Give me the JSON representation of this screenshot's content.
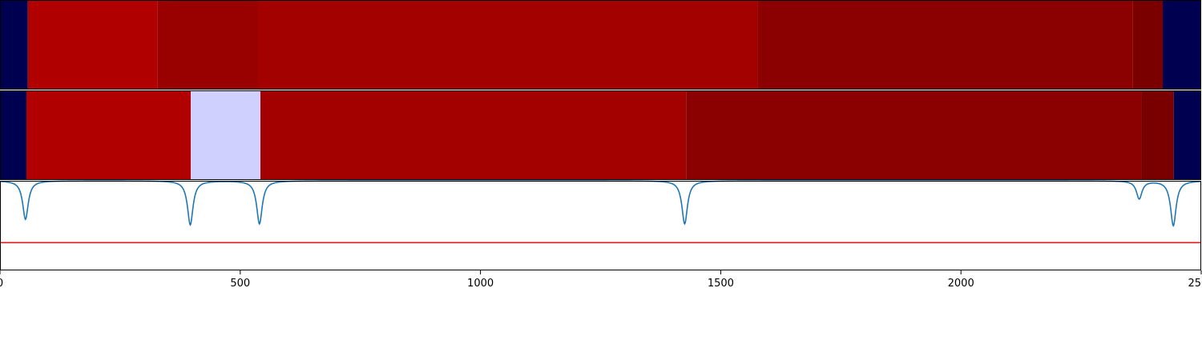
{
  "chart_data": {
    "type": "heatmap",
    "x_range": [
      0,
      2500
    ],
    "x_ticks": [
      0,
      500,
      1000,
      1500,
      2000,
      2500
    ],
    "x_tick_labels": [
      "0",
      "500",
      "1000",
      "1500",
      "2000",
      "2500"
    ],
    "grid": false,
    "rows": [
      {
        "segments": [
          {
            "start": 0,
            "end": 58,
            "color": "#000050"
          },
          {
            "start": 58,
            "end": 328,
            "color": "#b00000"
          },
          {
            "start": 328,
            "end": 537,
            "color": "#990000"
          },
          {
            "start": 537,
            "end": 1577,
            "color": "#a30000"
          },
          {
            "start": 1577,
            "end": 2358,
            "color": "#8b0000"
          },
          {
            "start": 2358,
            "end": 2420,
            "color": "#7a0000"
          },
          {
            "start": 2420,
            "end": 2500,
            "color": "#000050"
          }
        ]
      },
      {
        "segments": [
          {
            "start": 0,
            "end": 55,
            "color": "#000050"
          },
          {
            "start": 55,
            "end": 397,
            "color": "#b00000"
          },
          {
            "start": 397,
            "end": 542,
            "color": "#d0d0ff"
          },
          {
            "start": 542,
            "end": 1428,
            "color": "#a30000"
          },
          {
            "start": 1428,
            "end": 2375,
            "color": "#8b0000"
          },
          {
            "start": 2375,
            "end": 2443,
            "color": "#7a0000"
          },
          {
            "start": 2443,
            "end": 2500,
            "color": "#000050"
          }
        ]
      }
    ],
    "line_series": {
      "color": "#1f77b4",
      "y_range": [
        0,
        1
      ],
      "baseline": 1.0,
      "dips": [
        {
          "x": 53,
          "depth": 0.43
        },
        {
          "x": 396,
          "depth": 0.49
        },
        {
          "x": 540,
          "depth": 0.48
        },
        {
          "x": 1425,
          "depth": 0.48
        },
        {
          "x": 2371,
          "depth": 0.2
        },
        {
          "x": 2442,
          "depth": 0.5
        }
      ]
    },
    "threshold": {
      "y": 0.31,
      "color": "#e31a1c"
    }
  }
}
